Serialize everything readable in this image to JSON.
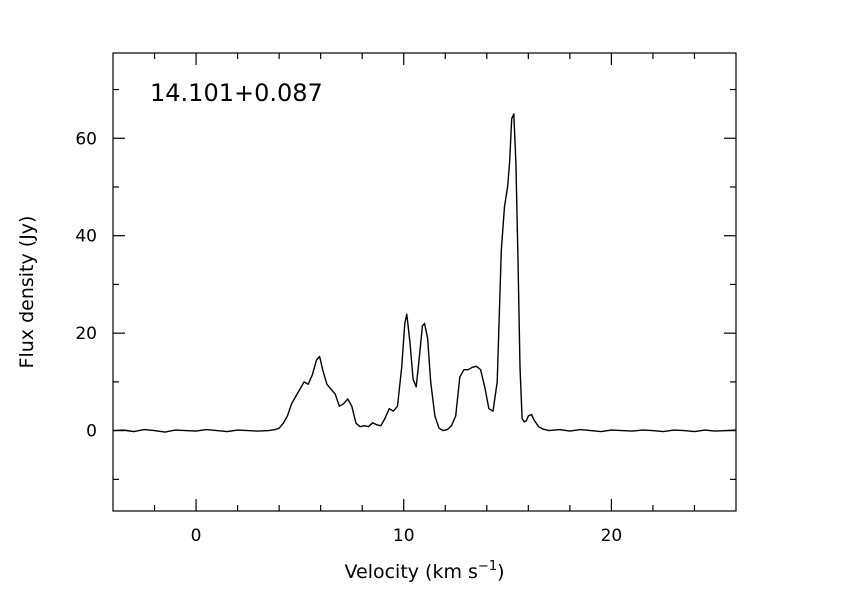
{
  "chart_data": {
    "type": "line",
    "title": "",
    "annotation": "14.101+0.087",
    "xlabel": "Velocity (km s",
    "xlabel_sup": "−1",
    "xlabel_end": ")",
    "ylabel": "Flux density (Jy)",
    "xlim": [
      -4.0,
      26.0
    ],
    "ylim": [
      -16.5,
      77.5
    ],
    "x_major_ticks": [
      0,
      10,
      20
    ],
    "x_tick_labels": [
      "0",
      "10",
      "20"
    ],
    "x_minor_ticks": [
      -2,
      2,
      4,
      6,
      8,
      12,
      14,
      16,
      18,
      22,
      24
    ],
    "y_major_ticks": [
      0,
      20,
      40,
      60
    ],
    "y_tick_labels": [
      "0",
      "20",
      "40",
      "60"
    ],
    "y_minor_ticks": [
      -10,
      10,
      30,
      50,
      70
    ],
    "grid": false,
    "line_color": "#000000",
    "series": [
      {
        "x": [
          -4.0,
          -3.5,
          -3.0,
          -2.5,
          -2.0,
          -1.5,
          -1.0,
          -0.5,
          0.0,
          0.5,
          1.0,
          1.5,
          2.0,
          2.5,
          3.0,
          3.5,
          3.8,
          4.0,
          4.2,
          4.4,
          4.6,
          4.8,
          5.0,
          5.2,
          5.4,
          5.6,
          5.8,
          5.95,
          6.1,
          6.3,
          6.5,
          6.7,
          6.9,
          7.1,
          7.3,
          7.5,
          7.7,
          7.9,
          8.1,
          8.3,
          8.5,
          8.7,
          8.9,
          9.1,
          9.3,
          9.5,
          9.7,
          9.9,
          10.05,
          10.15,
          10.3,
          10.45,
          10.6,
          10.75,
          10.9,
          11.0,
          11.15,
          11.3,
          11.5,
          11.7,
          11.9,
          12.1,
          12.3,
          12.5,
          12.7,
          12.9,
          13.1,
          13.3,
          13.5,
          13.7,
          13.9,
          14.1,
          14.3,
          14.5,
          14.7,
          14.85,
          15.0,
          15.1,
          15.2,
          15.3,
          15.4,
          15.5,
          15.6,
          15.7,
          15.8,
          15.9,
          16.0,
          16.15,
          16.3,
          16.5,
          16.7,
          17.0,
          17.5,
          18.0,
          18.5,
          19.0,
          19.5,
          20.0,
          20.5,
          21.0,
          21.5,
          22.0,
          22.5,
          23.0,
          23.5,
          24.0,
          24.5,
          25.0,
          25.5,
          26.0
        ],
        "y": [
          0.0,
          0.1,
          -0.2,
          0.2,
          0.0,
          -0.3,
          0.1,
          0.0,
          -0.1,
          0.2,
          0.0,
          -0.2,
          0.1,
          0.0,
          -0.1,
          0.0,
          0.2,
          0.5,
          1.5,
          3.0,
          5.5,
          7.0,
          8.5,
          10.0,
          9.5,
          11.5,
          14.5,
          15.2,
          12.5,
          9.5,
          8.5,
          7.5,
          5.0,
          5.5,
          6.5,
          5.0,
          1.5,
          0.8,
          1.0,
          0.8,
          1.6,
          1.2,
          1.0,
          2.5,
          4.5,
          4.0,
          5.0,
          13.0,
          22.0,
          23.9,
          18.0,
          10.5,
          9.0,
          15.0,
          21.5,
          22.0,
          19.0,
          10.0,
          3.0,
          0.5,
          0.0,
          0.2,
          1.0,
          3.0,
          11.0,
          12.5,
          12.5,
          13.0,
          13.2,
          12.5,
          9.0,
          4.5,
          4.0,
          10.0,
          37.0,
          46.0,
          50.0,
          55.0,
          64.0,
          65.0,
          55.0,
          35.0,
          13.0,
          2.5,
          1.8,
          2.0,
          3.0,
          3.3,
          2.0,
          0.8,
          0.3,
          0.0,
          0.2,
          -0.1,
          0.2,
          0.0,
          -0.2,
          0.1,
          0.0,
          -0.1,
          0.1,
          0.0,
          -0.2,
          0.1,
          0.0,
          -0.2,
          0.1,
          -0.1,
          0.0,
          0.1
        ]
      }
    ]
  }
}
